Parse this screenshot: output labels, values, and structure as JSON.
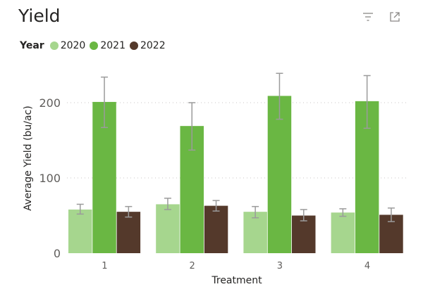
{
  "header": {
    "title": "Yield",
    "filter_icon": "filter-icon",
    "focus_icon": "focus-mode-icon"
  },
  "legend": {
    "title": "Year",
    "items": [
      {
        "label": "2020",
        "color": "#a6d68e"
      },
      {
        "label": "2021",
        "color": "#6ab743"
      },
      {
        "label": "2022",
        "color": "#54392b"
      }
    ]
  },
  "chart_data": {
    "type": "bar",
    "title": "Yield",
    "xlabel": "Treatment",
    "ylabel": "Average Yield (bu/ac)",
    "categories": [
      "1",
      "2",
      "3",
      "4"
    ],
    "yticks": [
      0,
      100,
      200
    ],
    "ylim": [
      0,
      245
    ],
    "grid": true,
    "legend_position": "top-left",
    "series": [
      {
        "name": "2020",
        "color": "#a6d68e",
        "values": [
          58,
          65,
          55,
          54
        ],
        "error_low": [
          52,
          58,
          47,
          49
        ],
        "error_high": [
          65,
          73,
          62,
          59
        ]
      },
      {
        "name": "2021",
        "color": "#6ab743",
        "values": [
          201,
          169,
          209,
          202
        ],
        "error_low": [
          167,
          137,
          178,
          166
        ],
        "error_high": [
          234,
          200,
          239,
          236
        ]
      },
      {
        "name": "2022",
        "color": "#54392b",
        "values": [
          55,
          63,
          50,
          51
        ],
        "error_low": [
          48,
          56,
          43,
          42
        ],
        "error_high": [
          62,
          70,
          58,
          60
        ]
      }
    ]
  }
}
